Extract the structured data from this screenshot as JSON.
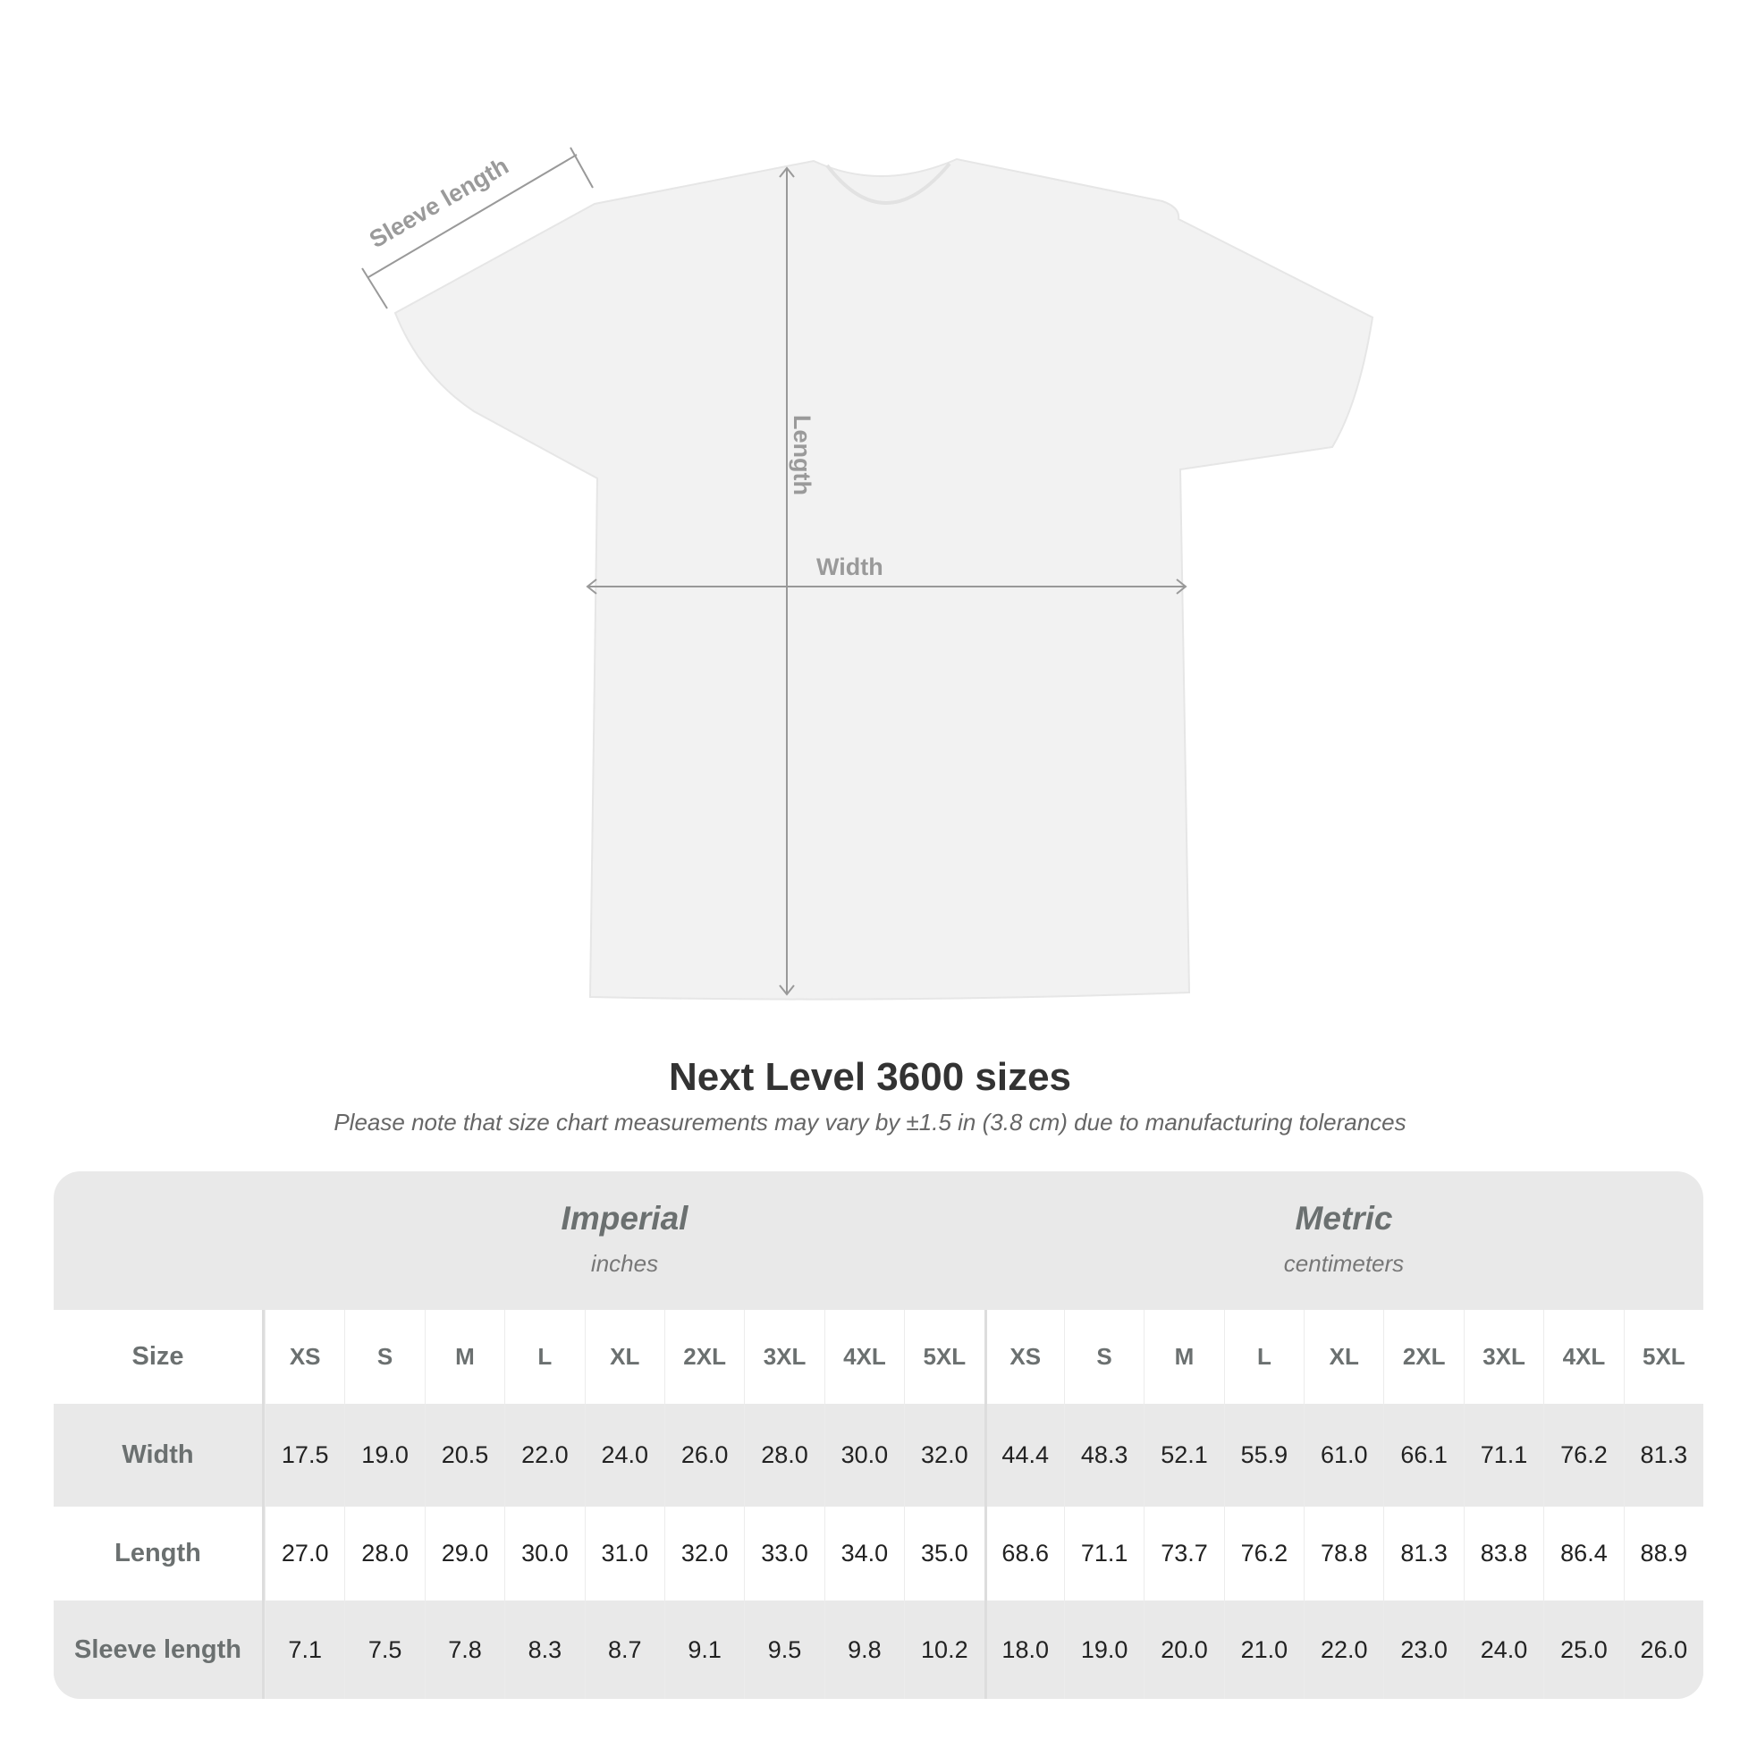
{
  "diagram": {
    "labels": {
      "sleeve": "Sleeve length",
      "length": "Length",
      "width": "Width"
    },
    "colors": {
      "shirt": "#f2f2f2",
      "arrows": "#999999",
      "label_text": "#9a9a9a"
    }
  },
  "title": "Next Level 3600 sizes",
  "subtitle": "Please note that size chart measurements may vary by ±1.5 in (3.8 cm) due to manufacturing tolerances",
  "table": {
    "imperial": {
      "name": "Imperial",
      "unit": "inches"
    },
    "metric": {
      "name": "Metric",
      "unit": "centimeters"
    },
    "size_label": "Size",
    "sizes": [
      "XS",
      "S",
      "M",
      "L",
      "XL",
      "2XL",
      "3XL",
      "4XL",
      "5XL"
    ],
    "rows": [
      {
        "label": "Width",
        "imperial": [
          "17.5",
          "19.0",
          "20.5",
          "22.0",
          "24.0",
          "26.0",
          "28.0",
          "30.0",
          "32.0"
        ],
        "metric": [
          "44.4",
          "48.3",
          "52.1",
          "55.9",
          "61.0",
          "66.1",
          "71.1",
          "76.2",
          "81.3"
        ]
      },
      {
        "label": "Length",
        "imperial": [
          "27.0",
          "28.0",
          "29.0",
          "30.0",
          "31.0",
          "32.0",
          "33.0",
          "34.0",
          "35.0"
        ],
        "metric": [
          "68.6",
          "71.1",
          "73.7",
          "76.2",
          "78.8",
          "81.3",
          "83.8",
          "86.4",
          "88.9"
        ]
      },
      {
        "label": "Sleeve length",
        "imperial": [
          "7.1",
          "7.5",
          "7.8",
          "8.3",
          "8.7",
          "9.1",
          "9.5",
          "9.8",
          "10.2"
        ],
        "metric": [
          "18.0",
          "19.0",
          "20.0",
          "21.0",
          "22.0",
          "23.0",
          "24.0",
          "25.0",
          "26.0"
        ]
      }
    ]
  }
}
